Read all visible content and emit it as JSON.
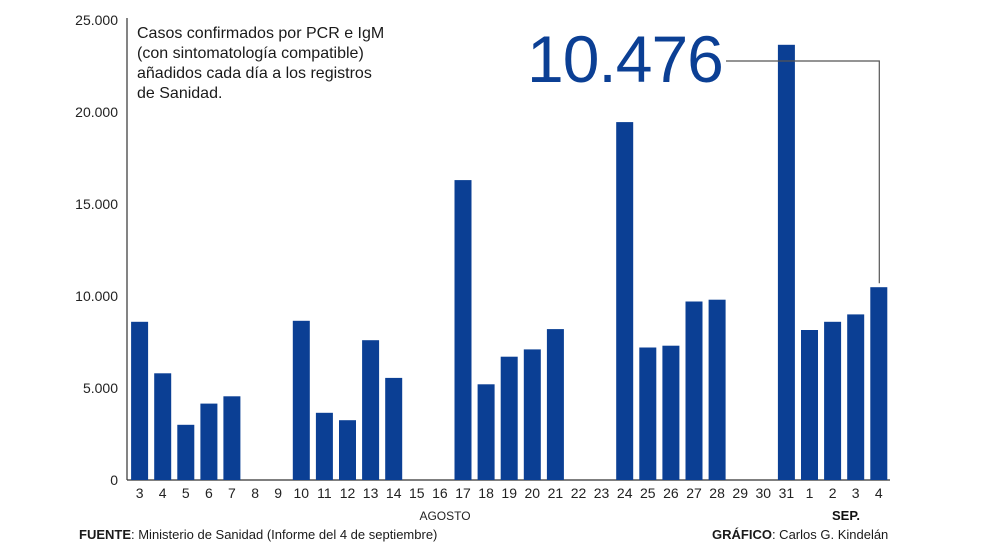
{
  "chart_data": {
    "type": "bar",
    "annotation": {
      "lines": [
        "Casos confirmados por PCR e IgM",
        "(con sintomatología compatible)",
        "añadidos cada día a los registros",
        "de Sanidad."
      ],
      "highlight_value": "10.476"
    },
    "categories": [
      "3",
      "4",
      "5",
      "6",
      "7",
      "8",
      "9",
      "10",
      "11",
      "12",
      "13",
      "14",
      "15",
      "16",
      "17",
      "18",
      "19",
      "20",
      "21",
      "22",
      "23",
      "24",
      "25",
      "26",
      "27",
      "28",
      "29",
      "30",
      "31",
      "1",
      "2",
      "3",
      "4"
    ],
    "values": [
      8600,
      5800,
      3000,
      4150,
      4550,
      0,
      0,
      8650,
      3650,
      3250,
      7600,
      5550,
      0,
      0,
      16300,
      5200,
      6700,
      7100,
      8200,
      0,
      0,
      19450,
      7200,
      7300,
      9700,
      9800,
      0,
      0,
      23650,
      8150,
      8600,
      9000,
      10476
    ],
    "yticks": [
      "0",
      "5.000",
      "10.000",
      "15.000",
      "20.000",
      "25.000"
    ],
    "ylim": [
      0,
      25000
    ],
    "month_labels": {
      "august": "AGOSTO",
      "september": "SEP."
    },
    "bar_color": "#0b3f94",
    "axis_color": "#333333"
  },
  "footer": {
    "source_label": "FUENTE",
    "source_text": ": Ministerio de Sanidad (Informe del 4 de septiembre)",
    "credit_label": "GRÁFICO",
    "credit_text": ": Carlos G. Kindelán"
  }
}
